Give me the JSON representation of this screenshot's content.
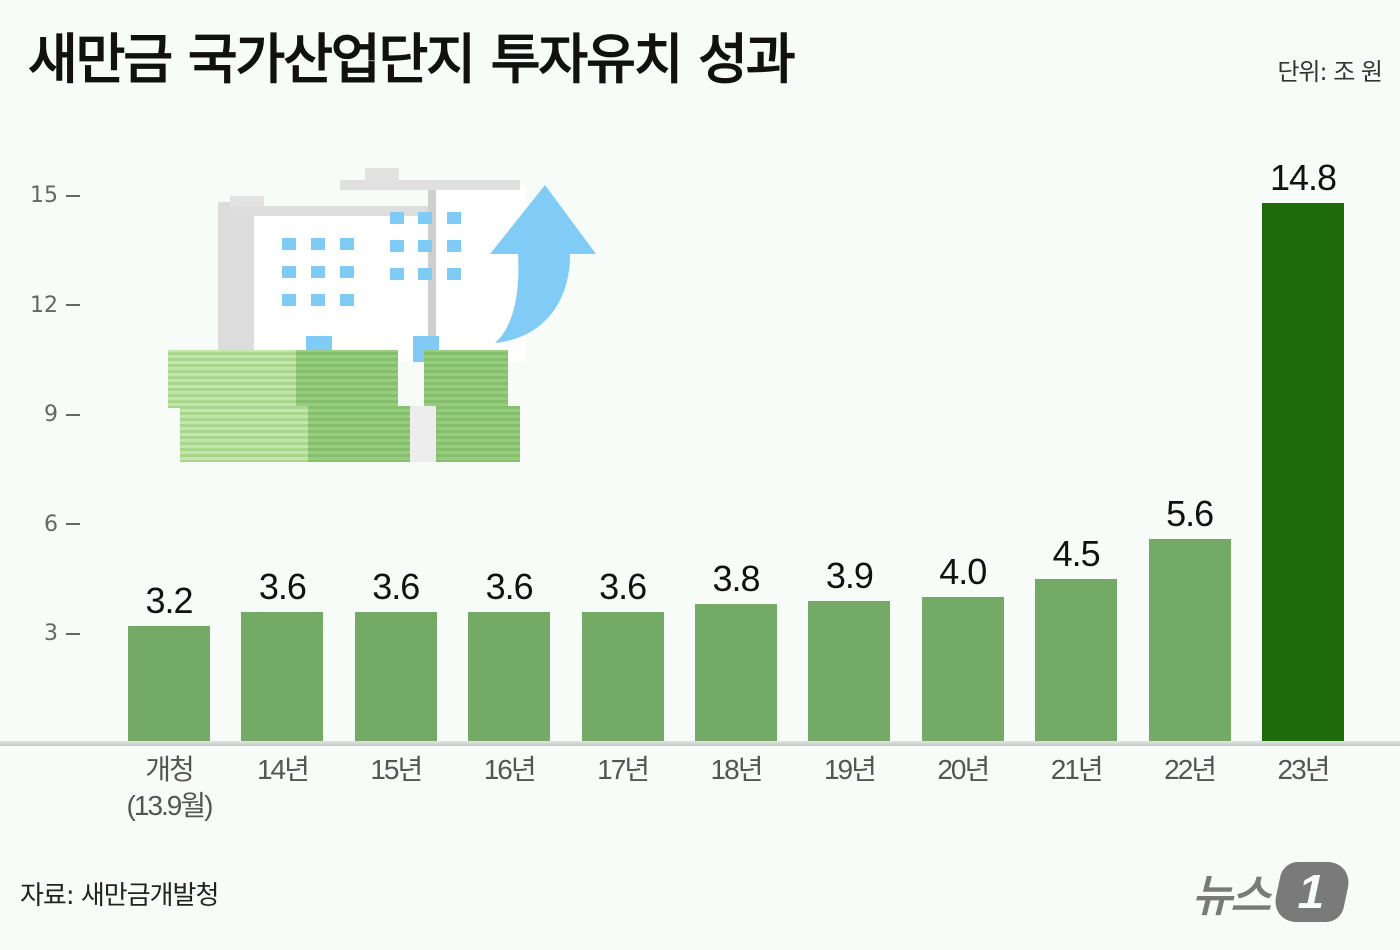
{
  "header": {
    "title": "새만금 국가산업단지 투자유치 성과",
    "unit": "단위: 조 원"
  },
  "footer": {
    "source": "자료: 새만금개발청",
    "logo_text": "뉴스",
    "logo_badge": "1"
  },
  "illustration": {
    "icon": "buildings-on-money-with-up-arrow",
    "colors": {
      "building": "#ffffff",
      "building_shade": "#d9d9d9",
      "window": "#7fcbf5",
      "money": "#8cc475",
      "money_light": "#b8de9e",
      "arrow": "#80ccf7"
    }
  },
  "colors": {
    "background": "#f8fcf8",
    "bar_default": "#73aa66",
    "bar_highlight": "#1d6b0a",
    "axis_text": "#666666",
    "value_text": "#111111"
  },
  "chart_data": {
    "type": "bar",
    "title": "새만금 국가산업단지 투자유치 성과",
    "unit": "조 원",
    "xlabel": "",
    "ylabel": "",
    "ylim": [
      0,
      15.5
    ],
    "yticks": [
      3,
      6,
      9,
      12,
      15
    ],
    "grid": false,
    "legend": null,
    "categories": [
      "개청 (13.9월)",
      "14년",
      "15년",
      "16년",
      "17년",
      "18년",
      "19년",
      "20년",
      "21년",
      "22년",
      "23년"
    ],
    "category_lines": [
      [
        "개청",
        "(13.9월)"
      ],
      [
        "14년"
      ],
      [
        "15년"
      ],
      [
        "16년"
      ],
      [
        "17년"
      ],
      [
        "18년"
      ],
      [
        "19년"
      ],
      [
        "20년"
      ],
      [
        "21년"
      ],
      [
        "22년"
      ],
      [
        "23년"
      ]
    ],
    "values": [
      3.2,
      3.6,
      3.6,
      3.6,
      3.6,
      3.8,
      3.9,
      4.0,
      4.5,
      5.6,
      14.8
    ],
    "value_labels": [
      "3.2",
      "3.6",
      "3.6",
      "3.6",
      "3.6",
      "3.8",
      "3.9",
      "4.0",
      "4.5",
      "5.6",
      "14.8"
    ],
    "highlight_index": 10,
    "source": "새만금개발청"
  }
}
